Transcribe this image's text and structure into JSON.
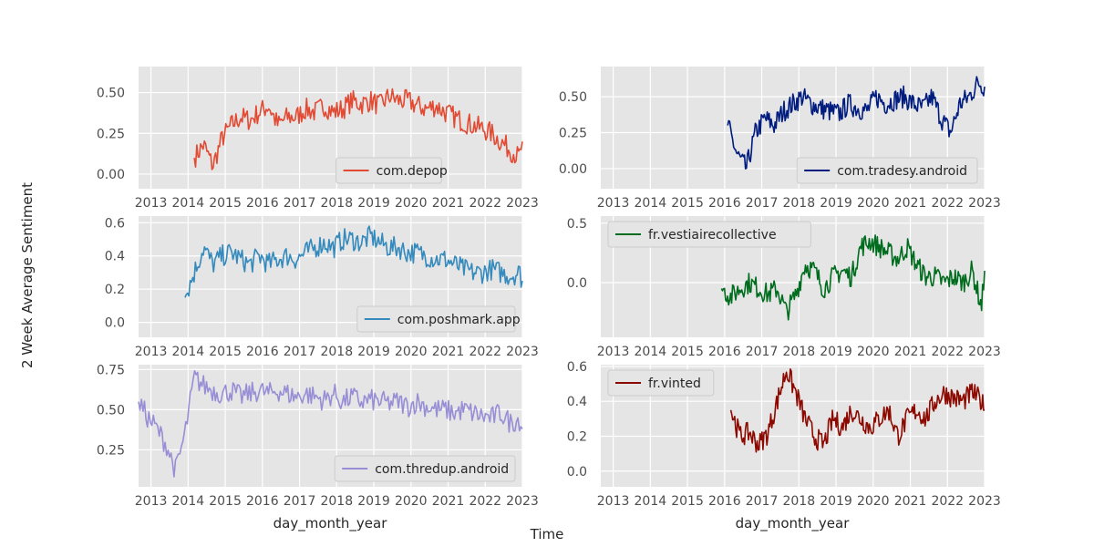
{
  "figure": {
    "ylabel": "2 Week Average Sentiment",
    "xlabel": "Time",
    "column_xlabel": "day_month_year"
  },
  "chart_data": [
    {
      "type": "line",
      "series": [
        {
          "name": "com.depop",
          "color": "#e24a33",
          "start": "2014-03",
          "end": "2023-01",
          "x": [
            "2014-03",
            "2014-06",
            "2014-09",
            "2014-12",
            "2015-03",
            "2015-06",
            "2015-09",
            "2015-12",
            "2016-03",
            "2016-06",
            "2016-09",
            "2016-12",
            "2017-03",
            "2017-06",
            "2017-09",
            "2017-12",
            "2018-03",
            "2018-06",
            "2018-09",
            "2018-12",
            "2019-03",
            "2019-06",
            "2019-09",
            "2019-12",
            "2020-03",
            "2020-06",
            "2020-09",
            "2020-12",
            "2021-03",
            "2021-06",
            "2021-09",
            "2021-12",
            "2022-03",
            "2022-06",
            "2022-09",
            "2022-12",
            "2023-01"
          ],
          "values": [
            0.1,
            0.18,
            0.05,
            0.22,
            0.3,
            0.35,
            0.33,
            0.38,
            0.42,
            0.3,
            0.35,
            0.35,
            0.4,
            0.38,
            0.42,
            0.38,
            0.4,
            0.45,
            0.43,
            0.45,
            0.42,
            0.48,
            0.45,
            0.45,
            0.42,
            0.4,
            0.42,
            0.38,
            0.35,
            0.32,
            0.3,
            0.28,
            0.25,
            0.2,
            0.15,
            0.1,
            0.2
          ]
        }
      ],
      "legend": "bottom-center",
      "ylim": [
        -0.09,
        0.66
      ],
      "yticks": [
        0.0,
        0.25,
        0.5
      ],
      "ytick_labels": [
        "0.00",
        "0.25",
        "0.50"
      ],
      "xlim": [
        "2012-09",
        "2023-01"
      ],
      "xtick_labels": [
        "2013",
        "2014",
        "2015",
        "2016",
        "2017",
        "2018",
        "2019",
        "2020",
        "2021",
        "2022",
        "2023"
      ],
      "grid": true
    },
    {
      "type": "line",
      "series": [
        {
          "name": "com.tradesy.android",
          "color": "#001c7f",
          "start": "2016-02",
          "end": "2023-01",
          "x": [
            "2016-02",
            "2016-05",
            "2016-08",
            "2016-11",
            "2017-02",
            "2017-05",
            "2017-08",
            "2017-11",
            "2018-02",
            "2018-05",
            "2018-08",
            "2018-11",
            "2019-02",
            "2019-05",
            "2019-08",
            "2019-11",
            "2020-02",
            "2020-05",
            "2020-08",
            "2020-11",
            "2021-02",
            "2021-05",
            "2021-08",
            "2021-11",
            "2022-02",
            "2022-05",
            "2022-08",
            "2022-11",
            "2023-01"
          ],
          "values": [
            0.3,
            0.1,
            0.0,
            0.25,
            0.35,
            0.3,
            0.4,
            0.45,
            0.5,
            0.45,
            0.42,
            0.4,
            0.38,
            0.45,
            0.42,
            0.4,
            0.5,
            0.45,
            0.48,
            0.5,
            0.45,
            0.42,
            0.5,
            0.35,
            0.25,
            0.45,
            0.5,
            0.6,
            0.57
          ]
        }
      ],
      "legend": "lower-right",
      "ylim": [
        -0.14,
        0.71
      ],
      "yticks": [
        0.0,
        0.25,
        0.5
      ],
      "ytick_labels": [
        "0.00",
        "0.25",
        "0.50"
      ],
      "xlim": [
        "2012-09",
        "2023-01"
      ],
      "xtick_labels": [
        "2013",
        "2014",
        "2015",
        "2016",
        "2017",
        "2018",
        "2019",
        "2020",
        "2021",
        "2022",
        "2023"
      ],
      "grid": true
    },
    {
      "type": "line",
      "series": [
        {
          "name": "com.poshmark.app",
          "color": "#348abd",
          "start": "2013-12",
          "end": "2023-01",
          "x": [
            "2013-12",
            "2014-03",
            "2014-06",
            "2014-09",
            "2014-12",
            "2015-03",
            "2015-06",
            "2015-09",
            "2015-12",
            "2016-03",
            "2016-06",
            "2016-09",
            "2016-12",
            "2017-03",
            "2017-06",
            "2017-09",
            "2017-12",
            "2018-03",
            "2018-06",
            "2018-09",
            "2018-12",
            "2019-03",
            "2019-06",
            "2019-09",
            "2019-12",
            "2020-03",
            "2020-06",
            "2020-09",
            "2020-12",
            "2021-03",
            "2021-06",
            "2021-09",
            "2021-12",
            "2022-03",
            "2022-06",
            "2022-09",
            "2022-12",
            "2023-01"
          ],
          "values": [
            0.15,
            0.3,
            0.45,
            0.35,
            0.4,
            0.42,
            0.38,
            0.35,
            0.4,
            0.35,
            0.38,
            0.4,
            0.38,
            0.42,
            0.45,
            0.48,
            0.45,
            0.5,
            0.5,
            0.48,
            0.52,
            0.48,
            0.45,
            0.45,
            0.42,
            0.42,
            0.4,
            0.38,
            0.38,
            0.35,
            0.32,
            0.3,
            0.3,
            0.32,
            0.3,
            0.28,
            0.3,
            0.25
          ]
        }
      ],
      "legend": "lower-right",
      "ylim": [
        -0.09,
        0.64
      ],
      "yticks": [
        0.0,
        0.2,
        0.4,
        0.6
      ],
      "ytick_labels": [
        "0.0",
        "0.2",
        "0.4",
        "0.6"
      ],
      "xlim": [
        "2012-09",
        "2023-01"
      ],
      "xtick_labels": [
        "2013",
        "2014",
        "2015",
        "2016",
        "2017",
        "2018",
        "2019",
        "2020",
        "2021",
        "2022",
        "2023"
      ],
      "grid": true
    },
    {
      "type": "line",
      "series": [
        {
          "name": "fr.vestiairecollective",
          "color": "#006d1e",
          "start": "2015-12",
          "end": "2023-01",
          "x": [
            "2015-12",
            "2016-03",
            "2016-06",
            "2016-09",
            "2016-12",
            "2017-03",
            "2017-06",
            "2017-09",
            "2017-12",
            "2018-03",
            "2018-06",
            "2018-09",
            "2018-12",
            "2019-03",
            "2019-06",
            "2019-09",
            "2019-12",
            "2020-03",
            "2020-06",
            "2020-09",
            "2020-12",
            "2021-03",
            "2021-06",
            "2021-09",
            "2021-12",
            "2022-03",
            "2022-06",
            "2022-09",
            "2022-12",
            "2023-01"
          ],
          "values": [
            -0.05,
            -0.12,
            -0.05,
            0.0,
            -0.05,
            -0.1,
            -0.05,
            -0.25,
            -0.1,
            0.15,
            0.1,
            -0.05,
            0.05,
            0.1,
            0.05,
            0.3,
            0.35,
            0.3,
            0.25,
            0.2,
            0.3,
            0.15,
            0.05,
            0.05,
            0.0,
            0.05,
            0.0,
            0.1,
            -0.2,
            0.1
          ]
        }
      ],
      "legend": "upper-left",
      "ylim": [
        -0.46,
        0.56
      ],
      "yticks": [
        0.0,
        0.5
      ],
      "ytick_labels": [
        "0.0",
        "0.5"
      ],
      "xlim": [
        "2012-09",
        "2023-01"
      ],
      "xtick_labels": [
        "2013",
        "2014",
        "2015",
        "2016",
        "2017",
        "2018",
        "2019",
        "2020",
        "2021",
        "2022",
        "2023"
      ],
      "grid": true
    },
    {
      "type": "line",
      "series": [
        {
          "name": "com.thredup.android",
          "color": "#988ed5",
          "start": "2012-09",
          "end": "2023-01",
          "x": [
            "2012-09",
            "2012-12",
            "2013-03",
            "2013-06",
            "2013-09",
            "2013-12",
            "2014-03",
            "2014-06",
            "2014-09",
            "2014-12",
            "2015-03",
            "2015-06",
            "2015-09",
            "2015-12",
            "2016-03",
            "2016-06",
            "2016-09",
            "2016-12",
            "2017-03",
            "2017-06",
            "2017-09",
            "2017-12",
            "2018-03",
            "2018-06",
            "2018-09",
            "2018-12",
            "2019-03",
            "2019-06",
            "2019-09",
            "2019-12",
            "2020-03",
            "2020-06",
            "2020-09",
            "2020-12",
            "2021-03",
            "2021-06",
            "2021-09",
            "2021-12",
            "2022-03",
            "2022-06",
            "2022-09",
            "2022-12",
            "2023-01"
          ],
          "values": [
            0.55,
            0.45,
            0.38,
            0.28,
            0.12,
            0.35,
            0.7,
            0.65,
            0.62,
            0.6,
            0.62,
            0.58,
            0.6,
            0.62,
            0.6,
            0.62,
            0.6,
            0.58,
            0.6,
            0.58,
            0.56,
            0.6,
            0.55,
            0.58,
            0.55,
            0.56,
            0.55,
            0.54,
            0.55,
            0.52,
            0.55,
            0.52,
            0.5,
            0.5,
            0.48,
            0.5,
            0.48,
            0.46,
            0.45,
            0.48,
            0.42,
            0.44,
            0.38
          ]
        }
      ],
      "legend": "lower-right",
      "ylim": [
        0.02,
        0.78
      ],
      "yticks": [
        0.25,
        0.5,
        0.75
      ],
      "ytick_labels": [
        "0.25",
        "0.50",
        "0.75"
      ],
      "xlim": [
        "2012-09",
        "2023-01"
      ],
      "xtick_labels": [
        "2013",
        "2014",
        "2015",
        "2016",
        "2017",
        "2018",
        "2019",
        "2020",
        "2021",
        "2022",
        "2023"
      ],
      "grid": true
    },
    {
      "type": "line",
      "series": [
        {
          "name": "fr.vinted",
          "color": "#8c0900",
          "start": "2016-03",
          "end": "2023-01",
          "x": [
            "2016-03",
            "2016-06",
            "2016-09",
            "2016-12",
            "2017-03",
            "2017-06",
            "2017-09",
            "2017-12",
            "2018-03",
            "2018-06",
            "2018-09",
            "2018-12",
            "2019-03",
            "2019-06",
            "2019-09",
            "2019-12",
            "2020-03",
            "2020-06",
            "2020-09",
            "2020-12",
            "2021-03",
            "2021-06",
            "2021-09",
            "2021-12",
            "2022-03",
            "2022-06",
            "2022-09",
            "2022-12",
            "2023-01"
          ],
          "values": [
            0.35,
            0.2,
            0.22,
            0.15,
            0.22,
            0.4,
            0.58,
            0.45,
            0.3,
            0.2,
            0.15,
            0.3,
            0.25,
            0.35,
            0.3,
            0.25,
            0.3,
            0.35,
            0.2,
            0.3,
            0.35,
            0.3,
            0.4,
            0.45,
            0.42,
            0.4,
            0.45,
            0.4,
            0.35
          ]
        }
      ],
      "legend": "upper-left",
      "ylim": [
        -0.09,
        0.61
      ],
      "yticks": [
        0.0,
        0.2,
        0.4,
        0.6
      ],
      "ytick_labels": [
        "0.0",
        "0.2",
        "0.4",
        "0.6"
      ],
      "xlim": [
        "2012-09",
        "2023-01"
      ],
      "xtick_labels": [
        "2013",
        "2014",
        "2015",
        "2016",
        "2017",
        "2018",
        "2019",
        "2020",
        "2021",
        "2022",
        "2023"
      ],
      "grid": true
    }
  ]
}
